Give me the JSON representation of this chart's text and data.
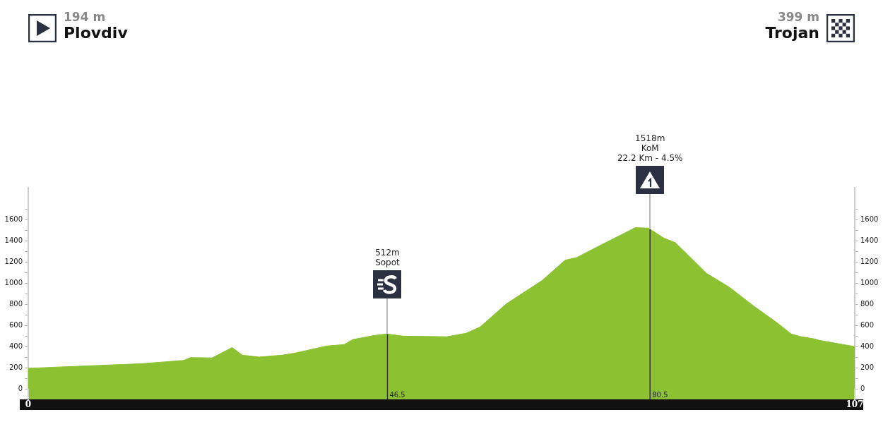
{
  "chart_data": {
    "type": "area",
    "x": [
      0,
      14.6,
      20.1,
      21,
      23.8,
      26.4,
      27.7,
      29.9,
      32.9,
      34.5,
      38.7,
      40.9,
      42,
      44.8,
      46.4,
      48.5,
      54.2,
      56.7,
      58.5,
      61.9,
      66.5,
      69.5,
      71,
      74.1,
      77.1,
      78.6,
      80.3,
      82.3,
      83.8,
      87.8,
      90.8,
      93.9,
      96.9,
      98.8,
      100,
      101.8,
      102.4,
      107
    ],
    "series": [
      {
        "color": "#8cc232",
        "values": [
          194,
          237,
          268,
          295,
          292,
          390,
          318,
          300,
          318,
          337,
          405,
          418,
          465,
          504,
          518,
          498,
          492,
          525,
          584,
          803,
          1022,
          1215,
          1240,
          1357,
          1467,
          1523,
          1518,
          1423,
          1380,
          1091,
          958,
          783,
          626,
          517,
          493,
          471,
          458,
          399
        ]
      }
    ],
    "xlim": [
      0,
      107
    ],
    "xticks": [
      0,
      107
    ],
    "ylim": [
      -100,
      1900
    ],
    "yticks": [
      0,
      {
        "value": 100,
        "label": null
      },
      200,
      {
        "value": 300,
        "label": null
      },
      400,
      {
        "value": 500,
        "label": null
      },
      600,
      {
        "value": 700,
        "label": null
      },
      800,
      {
        "value": 900,
        "label": null
      },
      1000,
      {
        "value": 1100,
        "label": null
      },
      1200,
      {
        "value": 1300,
        "label": null
      },
      1400,
      {
        "value": 1500,
        "label": null
      },
      1600,
      {
        "value": 1700,
        "label": null
      }
    ],
    "y2lim": [
      -100,
      1900
    ],
    "y2ticks": [
      0,
      {
        "value": 100,
        "label": null
      },
      200,
      {
        "value": 300,
        "label": null
      },
      400,
      {
        "value": 500,
        "label": null
      },
      600,
      {
        "value": 700,
        "label": null
      },
      800,
      {
        "value": 900,
        "label": null
      },
      1000,
      {
        "value": 1100,
        "label": null
      },
      1200,
      {
        "value": 1300,
        "label": null
      },
      1400,
      {
        "value": 1500,
        "label": null
      },
      1600,
      {
        "value": 1700,
        "label": null
      }
    ],
    "ref_lines": [
      {
        "axis": "x",
        "value": 46.5,
        "label": "46.5",
        "color": "#333333"
      },
      {
        "axis": "x",
        "value": 80.5,
        "label": "80.5",
        "color": "#333333"
      }
    ],
    "annotations": [
      "194 m",
      "Plovdiv",
      "399 m",
      "Trojan",
      "512m\nSopot",
      "1518m\nKoM\n22.2 Km - 4.5%"
    ],
    "grid": false,
    "legend": false
  }
}
